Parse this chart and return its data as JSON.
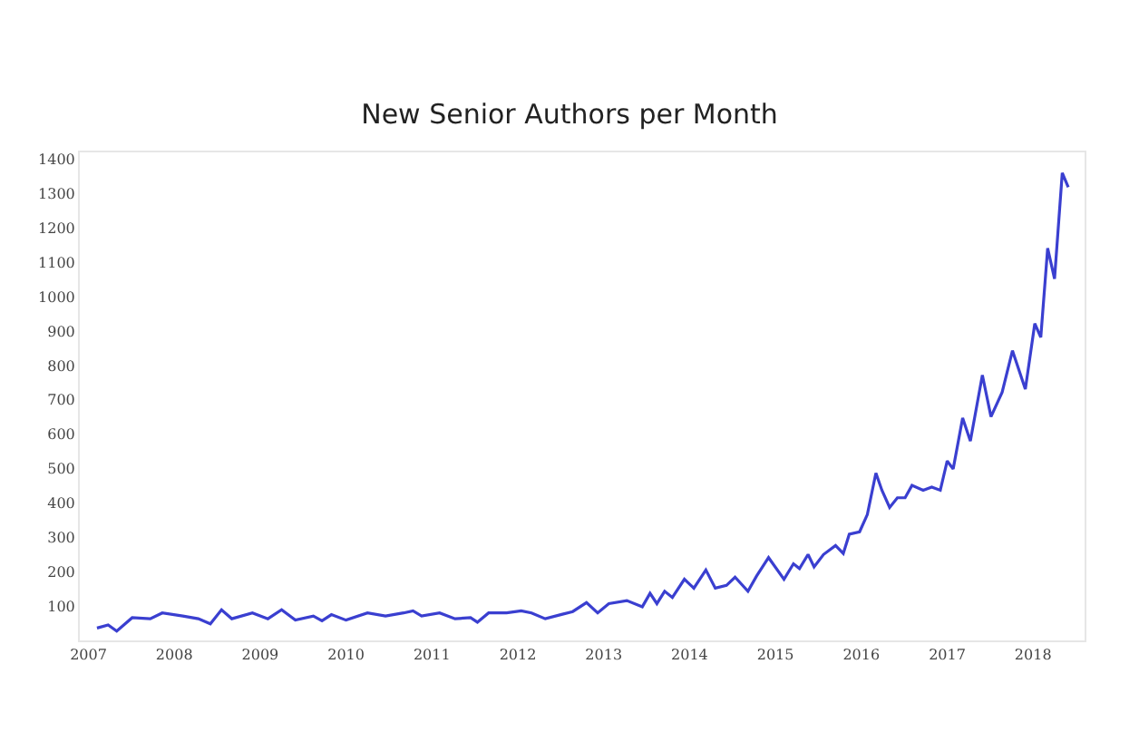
{
  "chart_data": {
    "type": "line",
    "title": "New Senior Authors per Month",
    "x": [
      2007.1,
      2007.23,
      2007.33,
      2007.51,
      2007.72,
      2007.86,
      2008.1,
      2008.28,
      2008.42,
      2008.55,
      2008.67,
      2008.91,
      2009.09,
      2009.25,
      2009.41,
      2009.62,
      2009.72,
      2009.83,
      2010.0,
      2010.25,
      2010.46,
      2010.67,
      2010.78,
      2010.88,
      2011.09,
      2011.27,
      2011.45,
      2011.53,
      2011.66,
      2011.87,
      2012.04,
      2012.16,
      2012.32,
      2012.5,
      2012.64,
      2012.8,
      2012.93,
      2013.06,
      2013.27,
      2013.45,
      2013.54,
      2013.62,
      2013.71,
      2013.8,
      2013.94,
      2014.05,
      2014.19,
      2014.3,
      2014.43,
      2014.53,
      2014.68,
      2014.78,
      2014.92,
      2015.1,
      2015.21,
      2015.28,
      2015.38,
      2015.45,
      2015.56,
      2015.7,
      2015.79,
      2015.86,
      2015.98,
      2016.07,
      2016.17,
      2016.24,
      2016.33,
      2016.42,
      2016.51,
      2016.59,
      2016.72,
      2016.82,
      2016.92,
      2017.0,
      2017.07,
      2017.18,
      2017.27,
      2017.41,
      2017.51,
      2017.64,
      2017.76,
      2017.91,
      2018.02,
      2018.09,
      2018.17,
      2018.25,
      2018.34,
      2018.41
    ],
    "series": [
      {
        "color": "#3a3fd0",
        "values": [
          36,
          45,
          27,
          66,
          63,
          80,
          71,
          63,
          48,
          89,
          63,
          80,
          63,
          89,
          59,
          71,
          57,
          75,
          59,
          80,
          71,
          80,
          86,
          71,
          80,
          63,
          66,
          53,
          80,
          80,
          86,
          80,
          63,
          75,
          84,
          110,
          80,
          107,
          116,
          98,
          137,
          107,
          143,
          125,
          178,
          152,
          205,
          152,
          160,
          184,
          143,
          187,
          241,
          178,
          223,
          209,
          250,
          214,
          250,
          276,
          253,
          309,
          316,
          366,
          487,
          437,
          387,
          415,
          415,
          451,
          437,
          446,
          437,
          522,
          499,
          647,
          580,
          772,
          651,
          722,
          843,
          731,
          922,
          882,
          1141,
          1052,
          1360,
          1319
        ]
      }
    ],
    "xticks": [
      {
        "value": 2007,
        "label": "2007"
      },
      {
        "value": 2008,
        "label": "2008"
      },
      {
        "value": 2009,
        "label": "2009"
      },
      {
        "value": 2010,
        "label": "2010"
      },
      {
        "value": 2011,
        "label": "2011"
      },
      {
        "value": 2012,
        "label": "2012"
      },
      {
        "value": 2013,
        "label": "2013"
      },
      {
        "value": 2014,
        "label": "2014"
      },
      {
        "value": 2015,
        "label": "2015"
      },
      {
        "value": 2016,
        "label": "2016"
      },
      {
        "value": 2017,
        "label": "2017"
      },
      {
        "value": 2018,
        "label": "2018"
      }
    ],
    "xlim": [
      2006.9,
      2018.6
    ],
    "ylim": [
      0,
      1420
    ],
    "yticks": [
      100,
      200,
      300,
      400,
      500,
      600,
      700,
      800,
      900,
      1000,
      1100,
      1200,
      1300,
      1400
    ],
    "grid": false,
    "marker": "none",
    "line_style": "solid"
  }
}
